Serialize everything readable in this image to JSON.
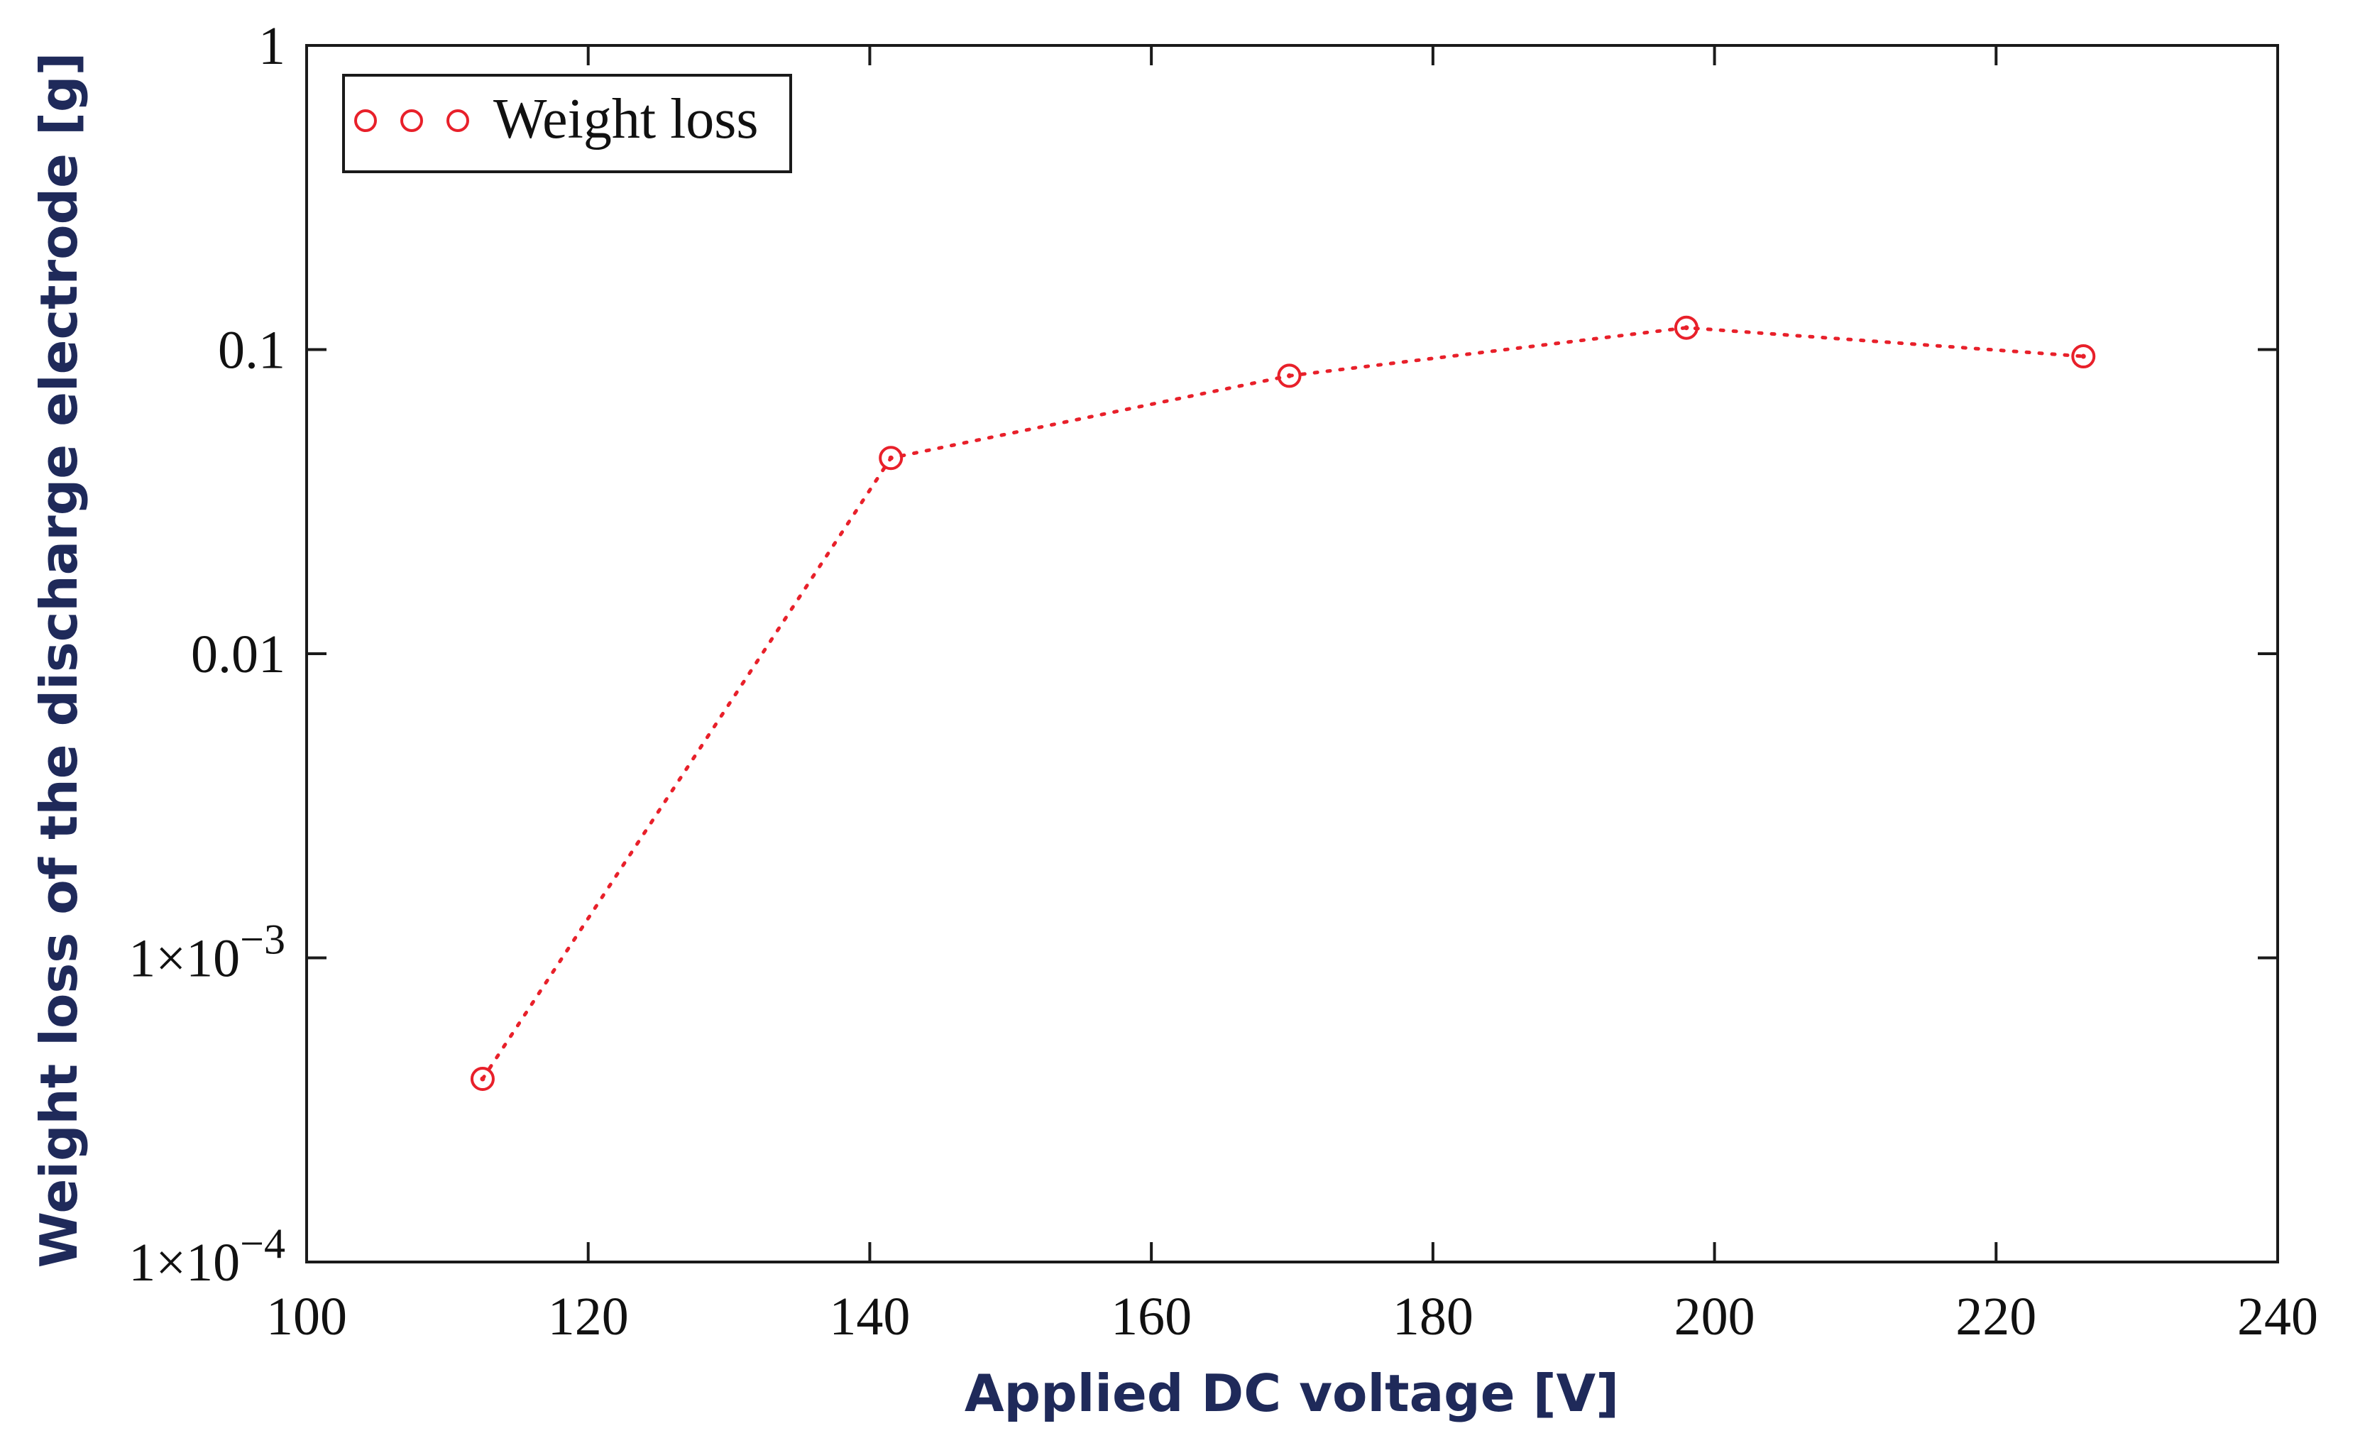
{
  "chart_data": {
    "type": "line",
    "title": "",
    "xlabel": "Applied DC voltage [V]",
    "ylabel": "Weight loss of the discharge electrode [g]",
    "yscale": "log",
    "xlim": [
      100,
      240
    ],
    "ylim": [
      0.0001,
      1
    ],
    "x_ticks": [
      100,
      120,
      140,
      160,
      180,
      200,
      220,
      240
    ],
    "x_tick_labels": [
      "100",
      "120",
      "140",
      "160",
      "180",
      "200",
      "220",
      "240"
    ],
    "y_ticks": [
      {
        "value": 1,
        "label": "1",
        "exponent": ""
      },
      {
        "value": 0.1,
        "label": "0.1",
        "exponent": ""
      },
      {
        "value": 0.01,
        "label": "0.01",
        "exponent": ""
      },
      {
        "value": 0.001,
        "label": "1×10",
        "exponent": "−3"
      },
      {
        "value": 0.0001,
        "label": "1×10",
        "exponent": "−4"
      }
    ],
    "grid": false,
    "legend_position": "top-left",
    "colors": {
      "series": "#e8202a",
      "axis": "#1a1a1a",
      "axis_title": "#1f2a5a"
    },
    "series": [
      {
        "name": "Weight loss",
        "line_style": "dotted",
        "marker": "circle",
        "x": [
          112.5,
          141.5,
          169.8,
          198.0,
          226.2
        ],
        "y": [
          0.0004,
          0.044,
          0.082,
          0.118,
          0.095
        ]
      }
    ]
  }
}
